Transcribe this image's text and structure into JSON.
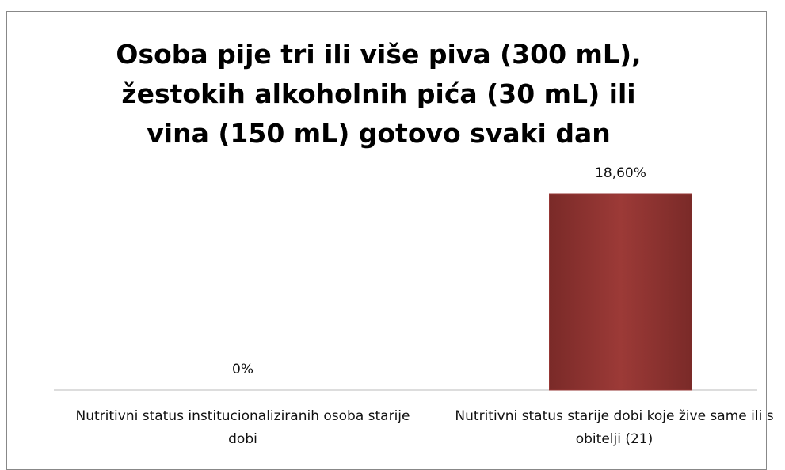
{
  "chart_data": {
    "type": "bar",
    "title": "Osoba pije tri ili više piva (300 mL), žestokih alkoholnih pića (30 mL) ili vina (150 mL) gotovo svaki dan",
    "categories": [
      "Nutritivni status institucionaliziranih osoba starije dobi",
      "Nutritivni status starije dobi koje žive same ili s obitelji (21)"
    ],
    "values": [
      0,
      18.6
    ],
    "value_labels": [
      "0%",
      "18,60%"
    ],
    "color": "#953735"
  }
}
